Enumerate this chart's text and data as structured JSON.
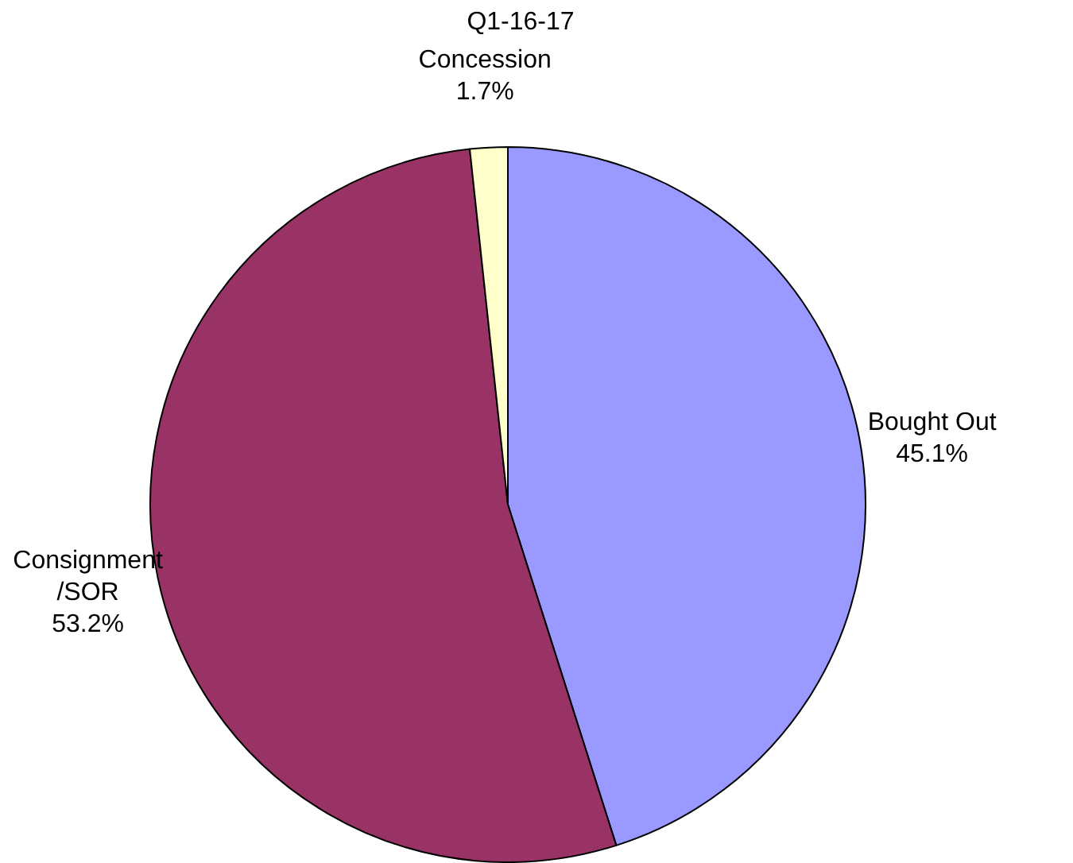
{
  "chart_data": {
    "type": "pie",
    "title": "Q1-16-17",
    "categories": [
      "Bought Out",
      "Consignment\n/SOR",
      "Concession"
    ],
    "values": [
      45.1,
      53.2,
      1.7
    ],
    "value_labels": [
      "45.1%",
      "53.2%",
      "1.7%"
    ],
    "colors": [
      "#9999ff",
      "#993366",
      "#ffffcc"
    ],
    "legend": false
  }
}
